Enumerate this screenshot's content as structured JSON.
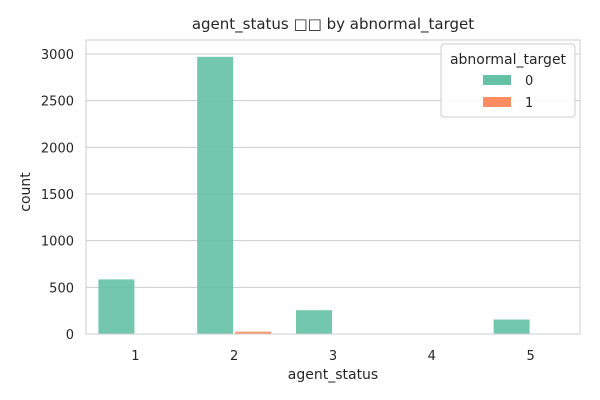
{
  "chart_data": {
    "type": "bar",
    "title": "agent_status □□ by abnormal_target",
    "xlabel": "agent_status",
    "ylabel": "count",
    "categories": [
      "1",
      "2",
      "3",
      "4",
      "5"
    ],
    "series": [
      {
        "name": "0",
        "color": "#66c2a5",
        "values": [
          585,
          2970,
          255,
          0,
          155
        ]
      },
      {
        "name": "1",
        "color": "#fc8d62",
        "values": [
          0,
          25,
          0,
          0,
          0
        ]
      }
    ],
    "ylim": [
      0,
      3150
    ],
    "yticks": [
      0,
      500,
      1000,
      1500,
      2000,
      2500,
      3000
    ],
    "grid": true,
    "legend": {
      "title": "abnormal_target",
      "placement": "top-right"
    }
  }
}
